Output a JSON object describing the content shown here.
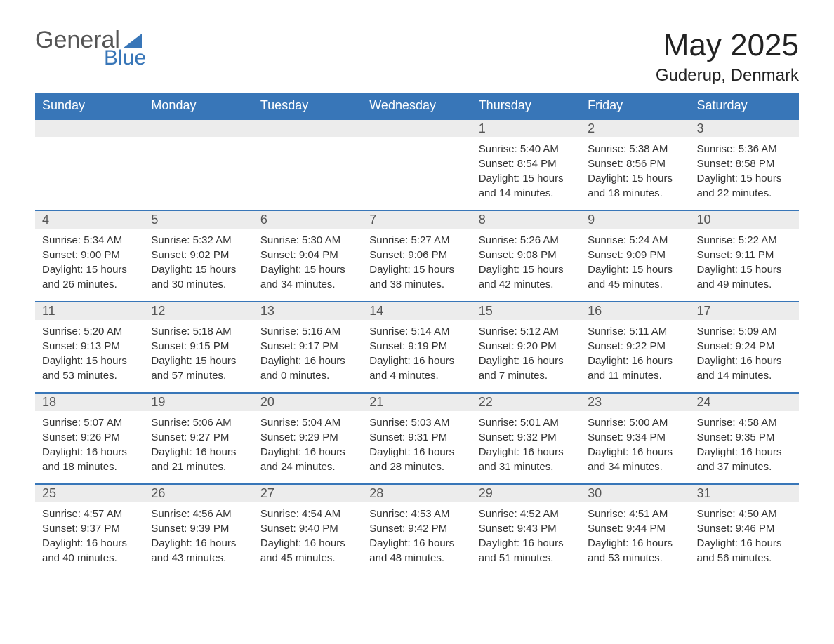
{
  "brand": {
    "general": "General",
    "blue": "Blue",
    "logo_color": "#3876b8"
  },
  "title": "May 2025",
  "location": "Guderup, Denmark",
  "header_bg": "#3876b8",
  "daynum_bg": "#ececec",
  "days_of_week": [
    "Sunday",
    "Monday",
    "Tuesday",
    "Wednesday",
    "Thursday",
    "Friday",
    "Saturday"
  ],
  "weeks": [
    [
      null,
      null,
      null,
      null,
      {
        "n": "1",
        "sunrise": "5:40 AM",
        "sunset": "8:54 PM",
        "dl": "15 hours and 14 minutes."
      },
      {
        "n": "2",
        "sunrise": "5:38 AM",
        "sunset": "8:56 PM",
        "dl": "15 hours and 18 minutes."
      },
      {
        "n": "3",
        "sunrise": "5:36 AM",
        "sunset": "8:58 PM",
        "dl": "15 hours and 22 minutes."
      }
    ],
    [
      {
        "n": "4",
        "sunrise": "5:34 AM",
        "sunset": "9:00 PM",
        "dl": "15 hours and 26 minutes."
      },
      {
        "n": "5",
        "sunrise": "5:32 AM",
        "sunset": "9:02 PM",
        "dl": "15 hours and 30 minutes."
      },
      {
        "n": "6",
        "sunrise": "5:30 AM",
        "sunset": "9:04 PM",
        "dl": "15 hours and 34 minutes."
      },
      {
        "n": "7",
        "sunrise": "5:27 AM",
        "sunset": "9:06 PM",
        "dl": "15 hours and 38 minutes."
      },
      {
        "n": "8",
        "sunrise": "5:26 AM",
        "sunset": "9:08 PM",
        "dl": "15 hours and 42 minutes."
      },
      {
        "n": "9",
        "sunrise": "5:24 AM",
        "sunset": "9:09 PM",
        "dl": "15 hours and 45 minutes."
      },
      {
        "n": "10",
        "sunrise": "5:22 AM",
        "sunset": "9:11 PM",
        "dl": "15 hours and 49 minutes."
      }
    ],
    [
      {
        "n": "11",
        "sunrise": "5:20 AM",
        "sunset": "9:13 PM",
        "dl": "15 hours and 53 minutes."
      },
      {
        "n": "12",
        "sunrise": "5:18 AM",
        "sunset": "9:15 PM",
        "dl": "15 hours and 57 minutes."
      },
      {
        "n": "13",
        "sunrise": "5:16 AM",
        "sunset": "9:17 PM",
        "dl": "16 hours and 0 minutes."
      },
      {
        "n": "14",
        "sunrise": "5:14 AM",
        "sunset": "9:19 PM",
        "dl": "16 hours and 4 minutes."
      },
      {
        "n": "15",
        "sunrise": "5:12 AM",
        "sunset": "9:20 PM",
        "dl": "16 hours and 7 minutes."
      },
      {
        "n": "16",
        "sunrise": "5:11 AM",
        "sunset": "9:22 PM",
        "dl": "16 hours and 11 minutes."
      },
      {
        "n": "17",
        "sunrise": "5:09 AM",
        "sunset": "9:24 PM",
        "dl": "16 hours and 14 minutes."
      }
    ],
    [
      {
        "n": "18",
        "sunrise": "5:07 AM",
        "sunset": "9:26 PM",
        "dl": "16 hours and 18 minutes."
      },
      {
        "n": "19",
        "sunrise": "5:06 AM",
        "sunset": "9:27 PM",
        "dl": "16 hours and 21 minutes."
      },
      {
        "n": "20",
        "sunrise": "5:04 AM",
        "sunset": "9:29 PM",
        "dl": "16 hours and 24 minutes."
      },
      {
        "n": "21",
        "sunrise": "5:03 AM",
        "sunset": "9:31 PM",
        "dl": "16 hours and 28 minutes."
      },
      {
        "n": "22",
        "sunrise": "5:01 AM",
        "sunset": "9:32 PM",
        "dl": "16 hours and 31 minutes."
      },
      {
        "n": "23",
        "sunrise": "5:00 AM",
        "sunset": "9:34 PM",
        "dl": "16 hours and 34 minutes."
      },
      {
        "n": "24",
        "sunrise": "4:58 AM",
        "sunset": "9:35 PM",
        "dl": "16 hours and 37 minutes."
      }
    ],
    [
      {
        "n": "25",
        "sunrise": "4:57 AM",
        "sunset": "9:37 PM",
        "dl": "16 hours and 40 minutes."
      },
      {
        "n": "26",
        "sunrise": "4:56 AM",
        "sunset": "9:39 PM",
        "dl": "16 hours and 43 minutes."
      },
      {
        "n": "27",
        "sunrise": "4:54 AM",
        "sunset": "9:40 PM",
        "dl": "16 hours and 45 minutes."
      },
      {
        "n": "28",
        "sunrise": "4:53 AM",
        "sunset": "9:42 PM",
        "dl": "16 hours and 48 minutes."
      },
      {
        "n": "29",
        "sunrise": "4:52 AM",
        "sunset": "9:43 PM",
        "dl": "16 hours and 51 minutes."
      },
      {
        "n": "30",
        "sunrise": "4:51 AM",
        "sunset": "9:44 PM",
        "dl": "16 hours and 53 minutes."
      },
      {
        "n": "31",
        "sunrise": "4:50 AM",
        "sunset": "9:46 PM",
        "dl": "16 hours and 56 minutes."
      }
    ]
  ],
  "labels": {
    "sunrise": "Sunrise: ",
    "sunset": "Sunset: ",
    "daylight": "Daylight: "
  }
}
